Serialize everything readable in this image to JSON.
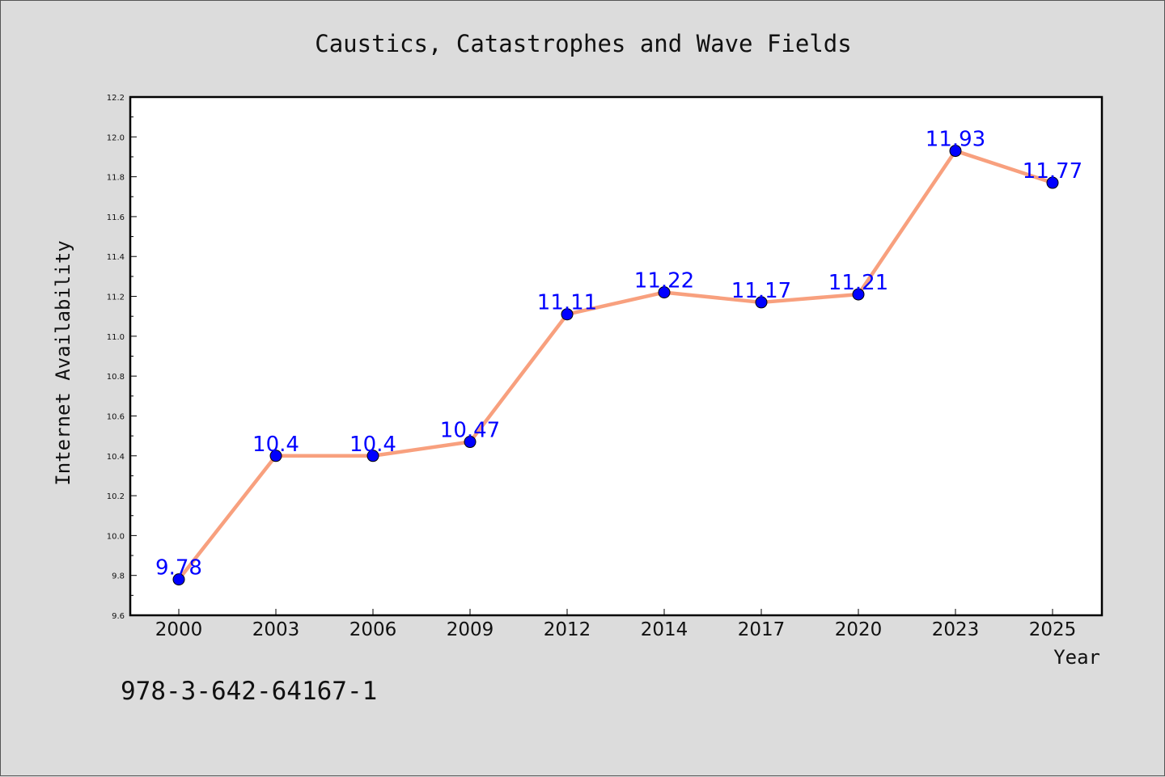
{
  "chart_data": {
    "type": "line",
    "title": "Caustics, Catastrophes and Wave Fields",
    "xlabel": "Year",
    "ylabel": "Internet Availability",
    "categories": [
      "2000",
      "2003",
      "2006",
      "2009",
      "2012",
      "2014",
      "2017",
      "2020",
      "2023",
      "2025"
    ],
    "series": [
      {
        "values": [
          9.78,
          10.4,
          10.4,
          10.47,
          11.11,
          11.22,
          11.17,
          11.21,
          11.93,
          11.77
        ]
      }
    ],
    "data_labels": [
      "9.78",
      "10.4",
      "10.4",
      "10.47",
      "11.11",
      "11.22",
      "11.17",
      "11.21",
      "11.93",
      "11.77"
    ],
    "ylim": [
      9.6,
      12.2
    ],
    "yticks": [
      "9.6",
      "9.8",
      "10.0",
      "10.2",
      "10.4",
      "10.6",
      "10.8",
      "11.0",
      "11.2",
      "11.4",
      "11.6",
      "11.8",
      "12.0",
      "12.2"
    ],
    "grid": false,
    "legend": "none",
    "colors": {
      "line": "#f8a07e",
      "marker": "#0000ff",
      "label": "#0000ff",
      "background": "#dcdcdc",
      "plot_background": "#ffffff"
    }
  },
  "annotation": "978-3-642-64167-1"
}
